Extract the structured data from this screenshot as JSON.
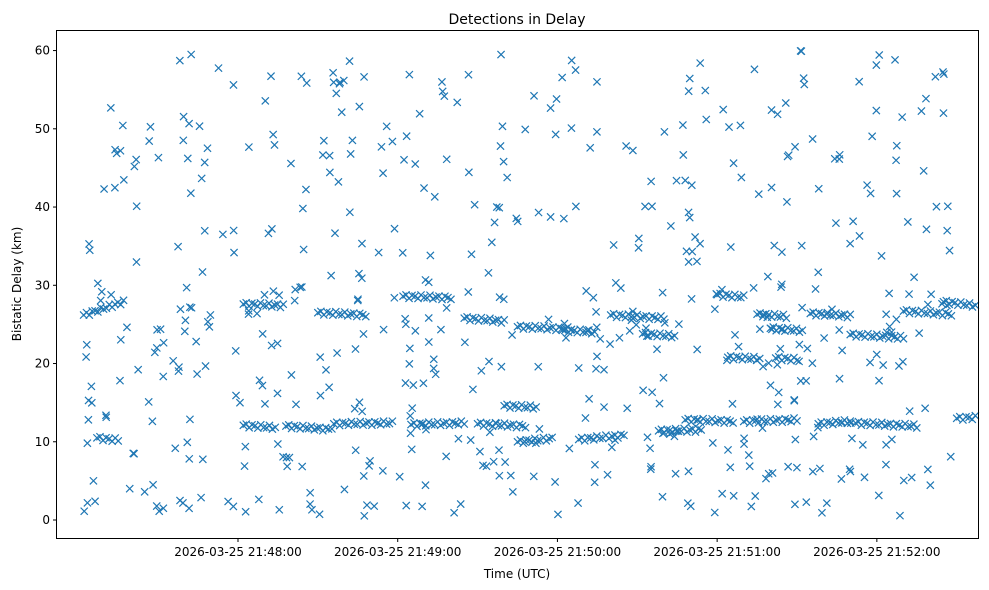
{
  "chart_data": {
    "type": "scatter",
    "title": "Detections in Delay",
    "xlabel": "Time (UTC)",
    "ylabel": "Bistatic Delay (km)",
    "marker": "x",
    "color": "#1f77b4",
    "grid": false,
    "legend": "none",
    "x_format": "YYYY-MM-DD HH:MM:SS",
    "xlim": [
      "2026-03-25 21:46:52",
      "2026-03-25 21:52:38"
    ],
    "ylim": [
      -2.3,
      62.5
    ],
    "x_ticks": [
      "2026-03-25 21:48:00",
      "2026-03-25 21:49:00",
      "2026-03-25 21:50:00",
      "2026-03-25 21:51:00",
      "2026-03-25 21:52:00"
    ],
    "y_ticks": [
      0,
      10,
      20,
      30,
      40,
      50,
      60
    ],
    "tracks": [
      {
        "x0": "2026-03-25 21:47:02",
        "x1": "2026-03-25 21:47:17",
        "y0": 26.2,
        "y1": 27.9
      },
      {
        "x0": "2026-03-25 21:47:07",
        "x1": "2026-03-25 21:47:15",
        "y0": 10.5,
        "y1": 10.2
      },
      {
        "x0": "2026-03-25 21:48:02",
        "x1": "2026-03-25 21:48:17",
        "y0": 27.6,
        "y1": 27.4
      },
      {
        "x0": "2026-03-25 21:48:02",
        "x1": "2026-03-25 21:48:14",
        "y0": 12.1,
        "y1": 11.8
      },
      {
        "x0": "2026-03-25 21:48:18",
        "x1": "2026-03-25 21:48:34",
        "y0": 12.0,
        "y1": 11.6
      },
      {
        "x0": "2026-03-25 21:48:30",
        "x1": "2026-03-25 21:48:48",
        "y0": 26.5,
        "y1": 26.2
      },
      {
        "x0": "2026-03-25 21:48:36",
        "x1": "2026-03-25 21:48:58",
        "y0": 12.3,
        "y1": 12.4
      },
      {
        "x0": "2026-03-25 21:49:02",
        "x1": "2026-03-25 21:49:20",
        "y0": 28.6,
        "y1": 28.4
      },
      {
        "x0": "2026-03-25 21:49:05",
        "x1": "2026-03-25 21:49:25",
        "y0": 12.2,
        "y1": 12.4
      },
      {
        "x0": "2026-03-25 21:49:25",
        "x1": "2026-03-25 21:49:40",
        "y0": 25.8,
        "y1": 25.4
      },
      {
        "x0": "2026-03-25 21:49:30",
        "x1": "2026-03-25 21:49:48",
        "y0": 12.3,
        "y1": 12.0
      },
      {
        "x0": "2026-03-25 21:49:40",
        "x1": "2026-03-25 21:49:52",
        "y0": 14.6,
        "y1": 14.4
      },
      {
        "x0": "2026-03-25 21:49:45",
        "x1": "2026-03-25 21:50:05",
        "y0": 24.7,
        "y1": 24.4
      },
      {
        "x0": "2026-03-25 21:49:45",
        "x1": "2026-03-25 21:49:58",
        "y0": 10.0,
        "y1": 10.4
      },
      {
        "x0": "2026-03-25 21:50:02",
        "x1": "2026-03-25 21:50:14",
        "y0": 24.3,
        "y1": 24.0
      },
      {
        "x0": "2026-03-25 21:50:08",
        "x1": "2026-03-25 21:50:25",
        "y0": 10.3,
        "y1": 10.8
      },
      {
        "x0": "2026-03-25 21:50:20",
        "x1": "2026-03-25 21:50:40",
        "y0": 26.2,
        "y1": 25.8
      },
      {
        "x0": "2026-03-25 21:50:32",
        "x1": "2026-03-25 21:50:44",
        "y0": 23.8,
        "y1": 23.5
      },
      {
        "x0": "2026-03-25 21:50:38",
        "x1": "2026-03-25 21:50:54",
        "y0": 11.4,
        "y1": 11.5
      },
      {
        "x0": "2026-03-25 21:50:48",
        "x1": "2026-03-25 21:51:06",
        "y0": 12.8,
        "y1": 12.6
      },
      {
        "x0": "2026-03-25 21:51:00",
        "x1": "2026-03-25 21:51:10",
        "y0": 28.8,
        "y1": 28.5
      },
      {
        "x0": "2026-03-25 21:51:04",
        "x1": "2026-03-25 21:51:16",
        "y0": 20.8,
        "y1": 20.6
      },
      {
        "x0": "2026-03-25 21:51:10",
        "x1": "2026-03-25 21:51:30",
        "y0": 12.6,
        "y1": 12.8
      },
      {
        "x0": "2026-03-25 21:51:15",
        "x1": "2026-03-25 21:51:26",
        "y0": 26.3,
        "y1": 26.0
      },
      {
        "x0": "2026-03-25 21:51:20",
        "x1": "2026-03-25 21:51:32",
        "y0": 24.5,
        "y1": 24.2
      },
      {
        "x0": "2026-03-25 21:51:22",
        "x1": "2026-03-25 21:51:30",
        "y0": 20.7,
        "y1": 20.5
      },
      {
        "x0": "2026-03-25 21:51:35",
        "x1": "2026-03-25 21:51:50",
        "y0": 26.4,
        "y1": 26.1
      },
      {
        "x0": "2026-03-25 21:51:38",
        "x1": "2026-03-25 21:51:50",
        "y0": 12.3,
        "y1": 12.6
      },
      {
        "x0": "2026-03-25 21:51:50",
        "x1": "2026-03-25 21:52:10",
        "y0": 23.7,
        "y1": 23.3
      },
      {
        "x0": "2026-03-25 21:51:52",
        "x1": "2026-03-25 21:52:15",
        "y0": 12.4,
        "y1": 12.0
      },
      {
        "x0": "2026-03-25 21:52:10",
        "x1": "2026-03-25 21:52:28",
        "y0": 26.7,
        "y1": 26.3
      },
      {
        "x0": "2026-03-25 21:52:25",
        "x1": "2026-03-25 21:52:37",
        "y0": 27.9,
        "y1": 27.4
      },
      {
        "x0": "2026-03-25 21:52:30",
        "x1": "2026-03-25 21:52:37",
        "y0": 13.0,
        "y1": 13.1
      }
    ]
  }
}
